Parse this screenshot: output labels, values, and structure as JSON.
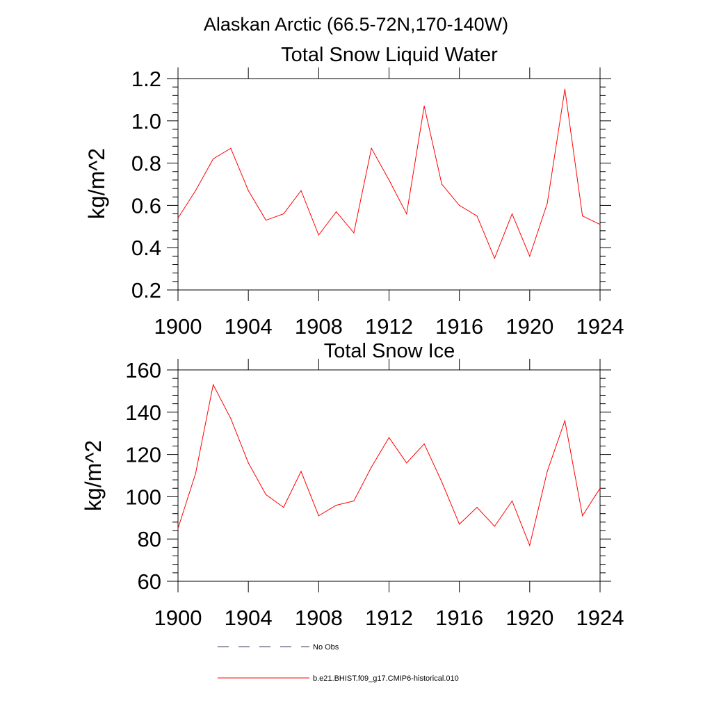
{
  "suptitle": "Alaskan Arctic (66.5-72N,170-140W)",
  "colors": {
    "model_line": "#ff0000",
    "obs_line": "#3a3a5a",
    "axes": "#000000"
  },
  "legend": {
    "placement": "bottom-center",
    "entries": [
      {
        "label": "No Obs",
        "style": "dashed",
        "color": "#3a3a5a"
      },
      {
        "label": "b.e21.BHIST.f09_g17.CMIP6-historical.010",
        "style": "solid",
        "color": "#ff0000"
      }
    ]
  },
  "chart_data": [
    {
      "type": "line",
      "title": "Total Snow Liquid Water",
      "xlabel": "",
      "ylabel": "kg/m^2",
      "xlim": [
        1900,
        1924
      ],
      "ylim": [
        0.2,
        1.2
      ],
      "xticks": [
        "1900",
        "1904",
        "1908",
        "1912",
        "1916",
        "1920",
        "1924"
      ],
      "yticks": [
        "0.2",
        "0.4",
        "0.6",
        "0.8",
        "1.0",
        "1.2"
      ],
      "grid": false,
      "x": [
        1900,
        1901,
        1902,
        1903,
        1904,
        1905,
        1906,
        1907,
        1908,
        1909,
        1910,
        1911,
        1912,
        1913,
        1914,
        1915,
        1916,
        1917,
        1918,
        1919,
        1920,
        1921,
        1922,
        1923,
        1924
      ],
      "series": [
        {
          "name": "b.e21.BHIST.f09_g17.CMIP6-historical.010",
          "values": [
            0.54,
            0.67,
            0.82,
            0.87,
            0.67,
            0.53,
            0.56,
            0.67,
            0.46,
            0.57,
            0.47,
            0.87,
            0.72,
            0.56,
            1.07,
            0.7,
            0.6,
            0.55,
            0.35,
            0.56,
            0.36,
            0.61,
            1.15,
            0.55,
            0.51
          ]
        }
      ]
    },
    {
      "type": "line",
      "title": "Total Snow Ice",
      "xlabel": "",
      "ylabel": "kg/m^2",
      "xlim": [
        1900,
        1924
      ],
      "ylim": [
        60,
        160
      ],
      "xticks": [
        "1900",
        "1904",
        "1908",
        "1912",
        "1916",
        "1920",
        "1924"
      ],
      "yticks": [
        "60",
        "80",
        "100",
        "120",
        "140",
        "160"
      ],
      "grid": false,
      "x": [
        1900,
        1901,
        1902,
        1903,
        1904,
        1905,
        1906,
        1907,
        1908,
        1909,
        1910,
        1911,
        1912,
        1913,
        1914,
        1915,
        1916,
        1917,
        1918,
        1919,
        1920,
        1921,
        1922,
        1923,
        1924
      ],
      "series": [
        {
          "name": "b.e21.BHIST.f09_g17.CMIP6-historical.010",
          "values": [
            85,
            111,
            153,
            137,
            116,
            101,
            95,
            112,
            91,
            96,
            98,
            114,
            128,
            116,
            125,
            107,
            87,
            95,
            86,
            98,
            77,
            112,
            136,
            91,
            104
          ]
        }
      ]
    }
  ]
}
